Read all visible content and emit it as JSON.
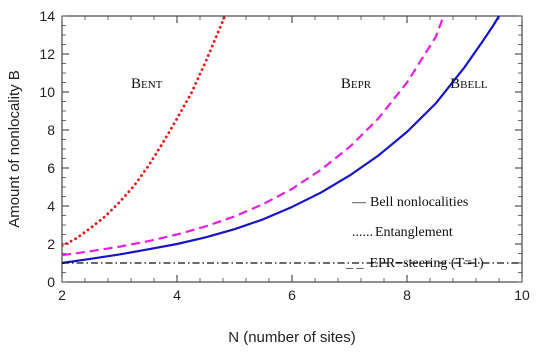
{
  "chart_data": {
    "type": "line",
    "xlabel": "N (number of sites)",
    "ylabel": "Amount of nonlocality B",
    "xlim": [
      2,
      10
    ],
    "ylim": [
      0,
      14
    ],
    "x_ticks": [
      "2",
      "4",
      "6",
      "8",
      "10"
    ],
    "y_ticks": [
      "0",
      "2",
      "4",
      "6",
      "8",
      "10",
      "12",
      "14"
    ],
    "grid": false,
    "series": [
      {
        "key": "ent",
        "style": "dotted",
        "color": "#e8161c",
        "label_parts": [
          "B",
          "ENT"
        ],
        "label_at": [
          3.2,
          10.2
        ],
        "x": [
          2.0,
          2.25,
          2.5,
          2.75,
          3.0,
          3.25,
          3.5,
          3.75,
          4.0,
          4.25,
          4.5,
          4.75,
          4.85
        ],
        "y": [
          1.9,
          2.3,
          2.85,
          3.45,
          4.2,
          5.05,
          6.1,
          7.3,
          8.6,
          9.95,
          11.6,
          13.4,
          14.1
        ]
      },
      {
        "key": "epr",
        "style": "dashed",
        "color": "#e81fe0",
        "label_parts": [
          "B",
          "EPR"
        ],
        "label_at": [
          6.85,
          10.2
        ],
        "x": [
          2.0,
          2.5,
          3.0,
          3.5,
          4.0,
          4.5,
          5.0,
          5.5,
          6.0,
          6.5,
          7.0,
          7.5,
          8.0,
          8.5,
          8.65
        ],
        "y": [
          1.41,
          1.62,
          1.86,
          2.15,
          2.5,
          2.93,
          3.45,
          4.1,
          4.9,
          5.9,
          7.1,
          8.6,
          10.5,
          12.9,
          14.1
        ]
      },
      {
        "key": "bell",
        "style": "solid",
        "color": "#1414c8",
        "label_parts": [
          "B",
          "BELL"
        ],
        "label_at": [
          8.75,
          10.2
        ],
        "x": [
          2.0,
          2.5,
          3.0,
          3.5,
          4.0,
          4.5,
          5.0,
          5.5,
          6.0,
          6.5,
          7.0,
          7.5,
          8.0,
          8.5,
          9.0,
          9.3,
          9.5,
          9.62
        ],
        "y": [
          1.0,
          1.22,
          1.45,
          1.72,
          2.0,
          2.35,
          2.78,
          3.3,
          3.95,
          4.7,
          5.6,
          6.65,
          7.9,
          9.4,
          11.3,
          12.6,
          13.5,
          14.1
        ]
      },
      {
        "key": "baseline",
        "style": "dashdot",
        "color": "#111111",
        "x": [
          2.0,
          10.0
        ],
        "y": [
          1.0,
          1.0
        ]
      }
    ],
    "legend": {
      "placement": "bottom-right",
      "entries": [
        {
          "glyph": "—",
          "text": "Bell nonlocalities"
        },
        {
          "glyph": "......",
          "text": "Entanglement"
        },
        {
          "glyph": "_ _",
          "text": "EPR−steering (T=1)"
        }
      ]
    }
  }
}
